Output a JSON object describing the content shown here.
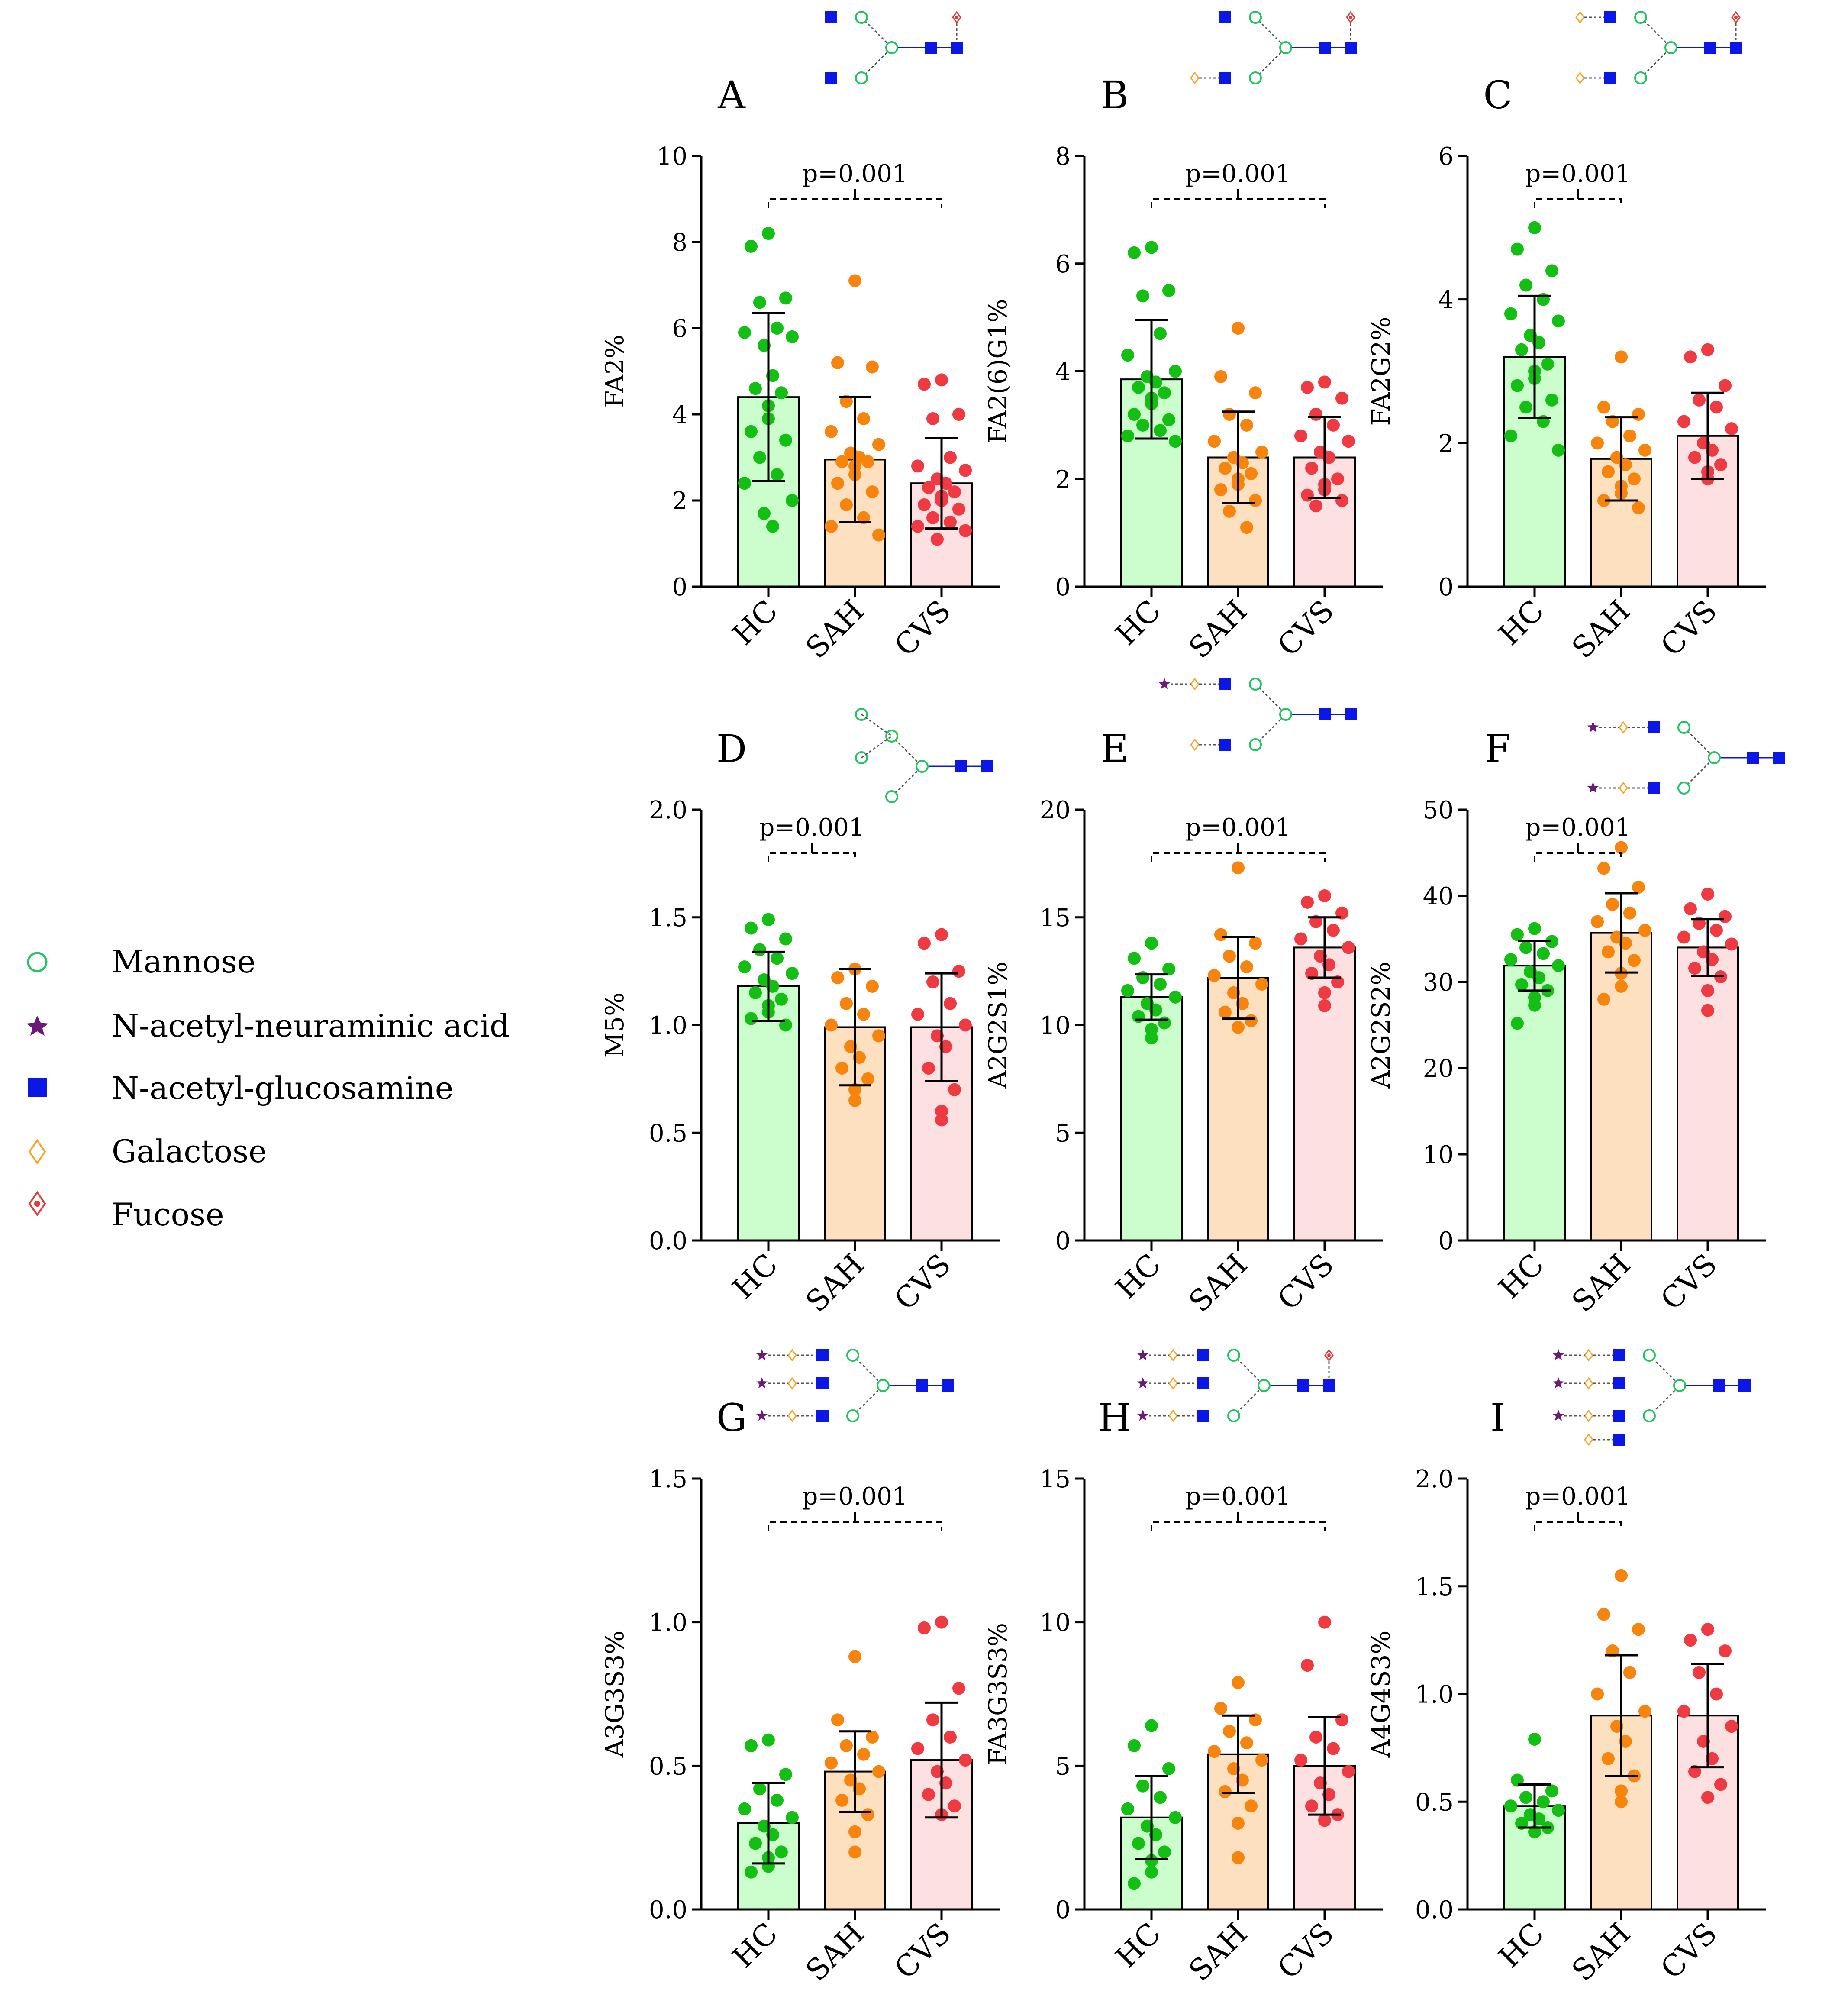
{
  "colors": {
    "HC": {
      "fill": "#ccfdcc",
      "dot": "#14bf14"
    },
    "SAH": {
      "fill": "#fde0c0",
      "dot": "#f7840c"
    },
    "CVS": {
      "fill": "#fde0e2",
      "dot": "#f03a42"
    },
    "mannose": "#22c55e",
    "neuraminic": "#6b1a7a",
    "glucosamine": "#0a17e6",
    "galactose": "#f5a623",
    "fucose": "#e53935"
  },
  "legend": [
    {
      "label": "Mannose",
      "icon": "mannose-circle-icon"
    },
    {
      "label": "N-acetyl-neuraminic acid",
      "icon": "neuraminic-star-icon"
    },
    {
      "label": "N-acetyl-glucosamine",
      "icon": "glucosamine-square-icon"
    },
    {
      "label": "Galactose",
      "icon": "galactose-diamond-icon"
    },
    {
      "label": "Fucose",
      "icon": "fucose-diamond-icon"
    }
  ],
  "chart_data": [
    {
      "type": "bar",
      "panel": "A",
      "ylabel": "FA2%",
      "categories": [
        "HC",
        "SAH",
        "CVS"
      ],
      "ylim": [
        0,
        10
      ],
      "yticks": [
        0,
        2,
        4,
        6,
        8,
        10
      ],
      "values": [
        4.4,
        2.95,
        2.4
      ],
      "sd": [
        1.95,
        1.45,
        1.05
      ],
      "points": [
        [
          8.2,
          7.9,
          6.7,
          6.6,
          6.0,
          5.9,
          5.8,
          5.6,
          4.9,
          4.6,
          4.5,
          4.2,
          3.9,
          3.6,
          3.4,
          3.0,
          2.6,
          2.4,
          2.0,
          1.7,
          1.4
        ],
        [
          7.1,
          5.2,
          5.1,
          4.3,
          3.9,
          3.6,
          3.3,
          3.1,
          3.0,
          2.9,
          2.9,
          2.8,
          2.6,
          2.4,
          2.2,
          1.9,
          1.6,
          1.4,
          1.2
        ],
        [
          4.8,
          4.7,
          4.0,
          3.9,
          3.0,
          2.8,
          2.7,
          2.5,
          2.4,
          2.3,
          2.2,
          2.1,
          2.0,
          1.9,
          1.8,
          1.6,
          1.5,
          1.4,
          1.3,
          1.1
        ]
      ],
      "annotation": {
        "text": "p=0.001",
        "from": "HC",
        "to": "CVS"
      }
    },
    {
      "type": "bar",
      "panel": "B",
      "ylabel": "FA2(6)G1%",
      "categories": [
        "HC",
        "SAH",
        "CVS"
      ],
      "ylim": [
        0,
        8
      ],
      "yticks": [
        0,
        2,
        4,
        6,
        8
      ],
      "values": [
        3.85,
        2.4,
        2.4
      ],
      "sd": [
        1.1,
        0.85,
        0.75
      ],
      "points": [
        [
          6.3,
          6.2,
          5.5,
          5.4,
          4.7,
          4.3,
          4.0,
          3.9,
          3.8,
          3.7,
          3.6,
          3.5,
          3.4,
          3.2,
          3.1,
          3.0,
          2.9,
          2.8,
          2.7
        ],
        [
          4.8,
          3.9,
          3.6,
          3.2,
          3.0,
          2.7,
          2.5,
          2.4,
          2.3,
          2.2,
          2.1,
          2.0,
          1.9,
          1.8,
          1.6,
          1.4,
          1.1
        ],
        [
          3.8,
          3.7,
          3.5,
          3.2,
          3.0,
          2.8,
          2.7,
          2.5,
          2.4,
          2.2,
          2.0,
          1.9,
          1.8,
          1.7,
          1.6,
          1.5
        ]
      ],
      "annotation": {
        "text": "p=0.001",
        "from": "HC",
        "to": "CVS"
      }
    },
    {
      "type": "bar",
      "panel": "C",
      "ylabel": "FA2G2%",
      "categories": [
        "HC",
        "SAH",
        "CVS"
      ],
      "ylim": [
        0,
        6
      ],
      "yticks": [
        0,
        2,
        4,
        6
      ],
      "values": [
        3.2,
        1.78,
        2.1
      ],
      "sd": [
        0.85,
        0.58,
        0.6
      ],
      "points": [
        [
          5.0,
          4.7,
          4.4,
          4.2,
          4.0,
          3.8,
          3.7,
          3.5,
          3.4,
          3.3,
          3.1,
          3.0,
          2.9,
          2.8,
          2.6,
          2.5,
          2.3,
          2.1,
          1.9
        ],
        [
          3.2,
          2.5,
          2.4,
          2.3,
          2.1,
          2.0,
          1.9,
          1.8,
          1.7,
          1.6,
          1.5,
          1.4,
          1.3,
          1.2,
          1.1
        ],
        [
          3.3,
          3.2,
          2.8,
          2.6,
          2.5,
          2.3,
          2.2,
          2.0,
          1.9,
          1.8,
          1.7,
          1.6,
          1.5
        ]
      ],
      "annotation": {
        "text": "p=0.001",
        "from": "HC",
        "to": "SAH"
      }
    },
    {
      "type": "bar",
      "panel": "D",
      "ylabel": "M5%",
      "categories": [
        "HC",
        "SAH",
        "CVS"
      ],
      "ylim": [
        0,
        2.0
      ],
      "yticks": [
        0.0,
        0.5,
        1.0,
        1.5,
        2.0
      ],
      "values": [
        1.18,
        0.99,
        0.99
      ],
      "sd": [
        0.16,
        0.27,
        0.25
      ],
      "points": [
        [
          1.49,
          1.45,
          1.4,
          1.35,
          1.31,
          1.27,
          1.24,
          1.21,
          1.18,
          1.15,
          1.12,
          1.09,
          1.06,
          1.03,
          1.0
        ],
        [
          1.26,
          1.22,
          1.18,
          1.1,
          1.05,
          1.0,
          0.95,
          0.9,
          0.85,
          0.8,
          0.75,
          0.7,
          0.65
        ],
        [
          1.42,
          1.38,
          1.25,
          1.2,
          1.1,
          1.05,
          1.0,
          0.95,
          0.9,
          0.8,
          0.7,
          0.6,
          0.56
        ]
      ],
      "annotation": {
        "text": "p=0.001",
        "from": "HC",
        "to": "SAH"
      }
    },
    {
      "type": "bar",
      "panel": "E",
      "ylabel": "A2G2S1%",
      "categories": [
        "HC",
        "SAH",
        "CVS"
      ],
      "ylim": [
        0,
        20
      ],
      "yticks": [
        0,
        5,
        10,
        15,
        20
      ],
      "values": [
        11.3,
        12.2,
        13.6
      ],
      "sd": [
        1.05,
        1.9,
        1.4
      ],
      "points": [
        [
          13.8,
          13.1,
          12.6,
          12.2,
          11.9,
          11.6,
          11.3,
          11.0,
          10.7,
          10.4,
          10.1,
          9.8,
          9.4
        ],
        [
          17.3,
          14.2,
          13.8,
          13.2,
          12.7,
          12.3,
          11.9,
          11.5,
          11.0,
          10.6,
          10.2,
          9.9
        ],
        [
          16.0,
          15.7,
          15.2,
          14.8,
          14.4,
          14.0,
          13.6,
          13.2,
          12.8,
          12.4,
          12.0,
          11.5,
          10.9
        ]
      ],
      "annotation": {
        "text": "p=0.001",
        "from": "HC",
        "to": "CVS"
      }
    },
    {
      "type": "bar",
      "panel": "F",
      "ylabel": "A2G2S2%",
      "categories": [
        "HC",
        "SAH",
        "CVS"
      ],
      "ylim": [
        0,
        50
      ],
      "yticks": [
        0,
        10,
        20,
        30,
        40,
        50
      ],
      "values": [
        31.9,
        35.7,
        34.0
      ],
      "sd": [
        2.9,
        4.6,
        3.3
      ],
      "points": [
        [
          36.2,
          35.5,
          34.7,
          34.0,
          33.3,
          32.6,
          31.9,
          31.2,
          30.5,
          29.7,
          29.0,
          28.2,
          27.3,
          25.2
        ],
        [
          45.6,
          43.2,
          41.0,
          39.0,
          38.0,
          37.0,
          36.0,
          35.2,
          34.5,
          33.5,
          32.5,
          31.0,
          29.5,
          28.0
        ],
        [
          40.2,
          38.5,
          37.6,
          36.8,
          36.0,
          35.2,
          34.4,
          33.5,
          32.6,
          31.6,
          30.6,
          29.0,
          26.7
        ]
      ],
      "annotation": {
        "text": "p=0.001",
        "from": "HC",
        "to": "SAH"
      }
    },
    {
      "type": "bar",
      "panel": "G",
      "ylabel": "A3G3S3%",
      "categories": [
        "HC",
        "SAH",
        "CVS"
      ],
      "ylim": [
        0,
        1.5
      ],
      "yticks": [
        0.0,
        0.5,
        1.0,
        1.5
      ],
      "values": [
        0.3,
        0.48,
        0.52
      ],
      "sd": [
        0.14,
        0.14,
        0.2
      ],
      "points": [
        [
          0.59,
          0.57,
          0.47,
          0.42,
          0.38,
          0.35,
          0.32,
          0.29,
          0.26,
          0.23,
          0.2,
          0.18,
          0.15,
          0.13
        ],
        [
          0.88,
          0.66,
          0.6,
          0.57,
          0.54,
          0.51,
          0.48,
          0.45,
          0.42,
          0.38,
          0.33,
          0.27,
          0.2
        ],
        [
          1.0,
          0.98,
          0.77,
          0.66,
          0.6,
          0.56,
          0.52,
          0.48,
          0.44,
          0.4,
          0.36,
          0.33
        ]
      ],
      "annotation": {
        "text": "p=0.001",
        "from": "HC",
        "to": "CVS"
      }
    },
    {
      "type": "bar",
      "panel": "H",
      "ylabel": "FA3G3S3%",
      "categories": [
        "HC",
        "SAH",
        "CVS"
      ],
      "ylim": [
        0,
        15
      ],
      "yticks": [
        0,
        5,
        10,
        15
      ],
      "values": [
        3.2,
        5.4,
        5.0
      ],
      "sd": [
        1.45,
        1.35,
        1.7
      ],
      "points": [
        [
          6.4,
          5.7,
          4.9,
          4.3,
          3.9,
          3.5,
          3.2,
          2.9,
          2.6,
          2.3,
          2.0,
          1.7,
          1.3,
          0.9
        ],
        [
          7.9,
          7.0,
          6.6,
          6.2,
          5.8,
          5.5,
          5.2,
          4.9,
          4.5,
          4.1,
          3.6,
          3.0,
          1.8
        ],
        [
          10.0,
          8.5,
          6.6,
          6.0,
          5.6,
          5.2,
          4.8,
          4.4,
          4.0,
          3.6,
          3.3,
          3.1
        ]
      ],
      "annotation": {
        "text": "p=0.001",
        "from": "HC",
        "to": "CVS"
      }
    },
    {
      "type": "bar",
      "panel": "I",
      "ylabel": "A4G4S3%",
      "categories": [
        "HC",
        "SAH",
        "CVS"
      ],
      "ylim": [
        0,
        2.0
      ],
      "yticks": [
        0.0,
        0.5,
        1.0,
        1.5,
        2.0
      ],
      "values": [
        0.48,
        0.9,
        0.9
      ],
      "sd": [
        0.1,
        0.28,
        0.24
      ],
      "points": [
        [
          0.79,
          0.6,
          0.55,
          0.52,
          0.5,
          0.48,
          0.46,
          0.44,
          0.42,
          0.4,
          0.38,
          0.36
        ],
        [
          1.55,
          1.37,
          1.3,
          1.2,
          1.1,
          1.0,
          0.92,
          0.85,
          0.78,
          0.7,
          0.62,
          0.55,
          0.5
        ],
        [
          1.3,
          1.25,
          1.2,
          1.1,
          1.0,
          0.92,
          0.85,
          0.78,
          0.7,
          0.64,
          0.58,
          0.52
        ]
      ],
      "annotation": {
        "text": "p=0.001",
        "from": "HC",
        "to": "SAH"
      }
    }
  ]
}
